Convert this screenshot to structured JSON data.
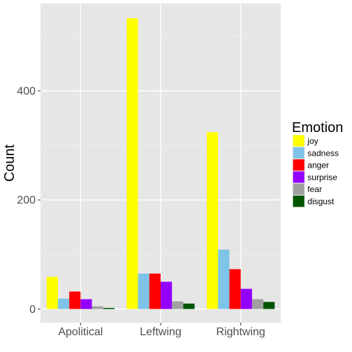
{
  "chart_data": {
    "type": "bar",
    "title": "",
    "xlabel": "",
    "ylabel": "Count",
    "categories": [
      "Apolitical",
      "Leftwing",
      "Rightwing"
    ],
    "series": [
      {
        "name": "joy",
        "color": "#FFFF00",
        "values": [
          59,
          533,
          324
        ]
      },
      {
        "name": "sadness",
        "color": "#7EC4E8",
        "values": [
          19,
          65,
          109
        ]
      },
      {
        "name": "anger",
        "color": "#FF0000",
        "values": [
          32,
          65,
          73
        ]
      },
      {
        "name": "surprise",
        "color": "#9400FF",
        "values": [
          18,
          50,
          37
        ]
      },
      {
        "name": "fear",
        "color": "#A0A0A0",
        "values": [
          5,
          14,
          18
        ]
      },
      {
        "name": "disgust",
        "color": "#005400",
        "values": [
          2,
          10,
          13
        ]
      }
    ],
    "ylim": [
      -25,
      560
    ],
    "yticks": [
      0,
      200,
      400
    ],
    "legend": {
      "title": "Emotion",
      "position": "right"
    },
    "grid": true,
    "panel_background": "#E6E6E6"
  }
}
